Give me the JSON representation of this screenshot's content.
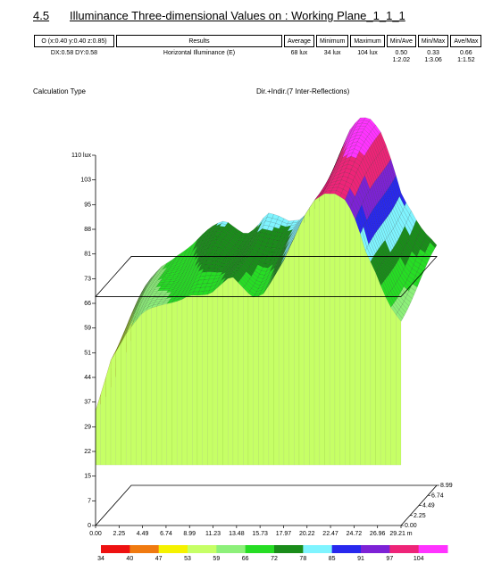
{
  "section": {
    "number": "4.5",
    "title": "Illuminance Three-dimensional Values on : Working Plane_1_1_1"
  },
  "results_table": {
    "headers": [
      "O (x:0.40 y:0.40 z:0.85)",
      "Results",
      "Average",
      "Minimum",
      "Maximum",
      "Min/Ave",
      "Min/Max",
      "Ave/Max"
    ],
    "row": {
      "grid": "DX:0.58 DY:0.58",
      "result": "Horizontal Illuminance (E)",
      "average": "68 lux",
      "minimum": "34 lux",
      "maximum": "104 lux",
      "min_ave": [
        "0.50",
        "1:2.02"
      ],
      "min_max": [
        "0.33",
        "1:3.06"
      ],
      "ave_max": [
        "0.66",
        "1:1.52"
      ]
    }
  },
  "calculation": {
    "label": "Calculation Type",
    "value": "Dir.+Indir.(7 Inter-Reflections)"
  },
  "chart_data": {
    "type": "area",
    "z_ticks": [
      "0",
      "7",
      "15",
      "22",
      "29",
      "37",
      "44",
      "51",
      "59",
      "66",
      "73",
      "81",
      "88",
      "95",
      "103",
      "110 lux"
    ],
    "x_ticks": [
      "0.00",
      "2.25",
      "4.49",
      "6.74",
      "8.99",
      "11.23",
      "13.48",
      "15.73",
      "17.97",
      "20.22",
      "22.47",
      "24.72",
      "26.96",
      "29.21 m"
    ],
    "y_ticks": [
      "0.00",
      "2.25",
      "4.49",
      "6.74",
      "8.99"
    ],
    "zlim": [
      0,
      110
    ],
    "xlim": [
      0,
      29.21
    ],
    "ylim": [
      0,
      8.99
    ],
    "average_plane": 68,
    "surface_profile": {
      "x": [
        0,
        1.5,
        3,
        4.5,
        6,
        7,
        8,
        9,
        10,
        11,
        12,
        13,
        14,
        15,
        16,
        17,
        18,
        19,
        20,
        21,
        22,
        23,
        24,
        25,
        26,
        26.5,
        27,
        28,
        29.21
      ],
      "lux": [
        38,
        55,
        62,
        66,
        68,
        70,
        72,
        74,
        73,
        72,
        74,
        77,
        75,
        73,
        74,
        78,
        82,
        88,
        95,
        101,
        104,
        104,
        101,
        93,
        82,
        80,
        76,
        70,
        66
      ]
    },
    "legend": {
      "values": [
        "34",
        "40",
        "47",
        "53",
        "59",
        "66",
        "72",
        "78",
        "85",
        "91",
        "97",
        "104"
      ],
      "colors": [
        "#ee1111",
        "#f07a10",
        "#f5f200",
        "#c6ff66",
        "#8df07a",
        "#26dd24",
        "#1a8c1a",
        "#7ff4ff",
        "#2828ee",
        "#7d22d6",
        "#ee2478",
        "#ff33ff"
      ]
    }
  }
}
